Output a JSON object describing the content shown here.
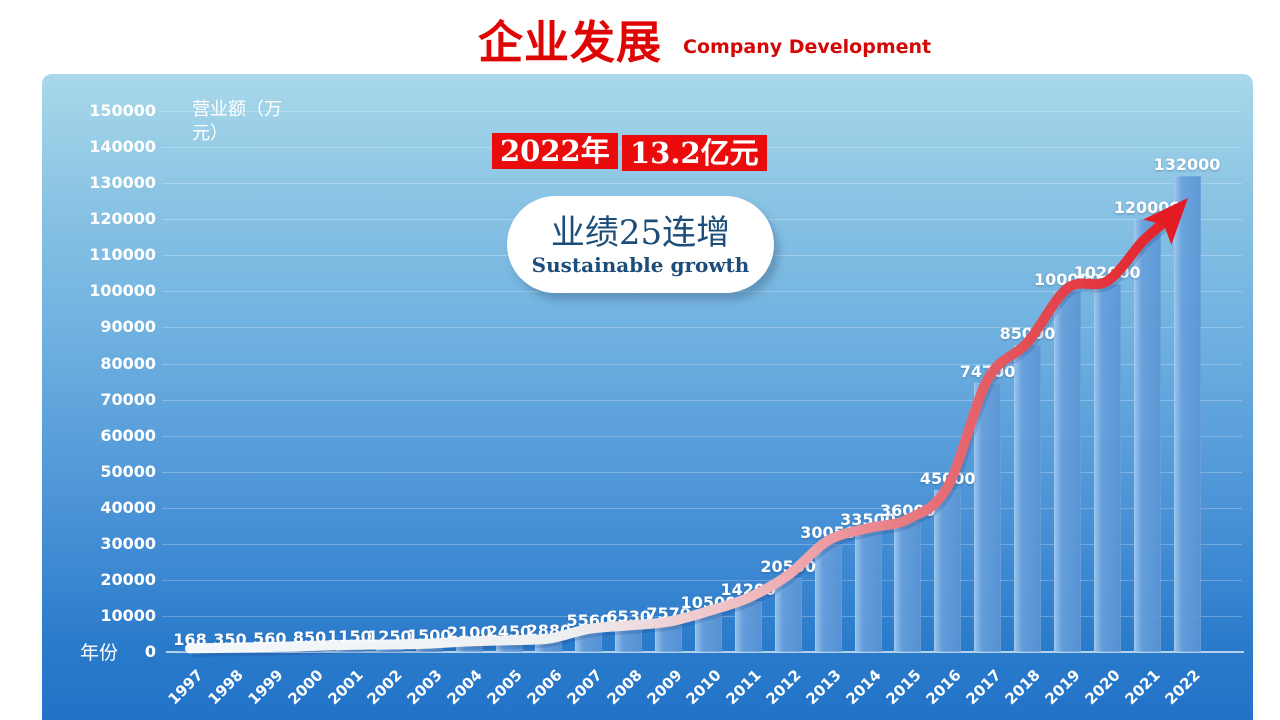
{
  "header": {
    "title_zh": "企业发展",
    "title_en": "Company Development"
  },
  "callout": {
    "year": "2022年",
    "amount": "13.2亿元"
  },
  "badge": {
    "line1": "业绩25连增",
    "line2": "Sustainable growth"
  },
  "chart_data": {
    "type": "bar",
    "title": "企业发展 Company Development",
    "xlabel": "年份",
    "ylabel": "营业额（万元）",
    "categories": [
      "1997",
      "1998",
      "1999",
      "2000",
      "2001",
      "2002",
      "2003",
      "2004",
      "2005",
      "2006",
      "2007",
      "2008",
      "2009",
      "2010",
      "2011",
      "2012",
      "2013",
      "2014",
      "2015",
      "2016",
      "2017",
      "2018",
      "2019",
      "2020",
      "2021",
      "2022"
    ],
    "values": [
      168,
      350,
      560,
      850,
      1150,
      1250,
      1500,
      2100,
      2450,
      2880,
      5560,
      6530,
      7570,
      10500,
      14200,
      20500,
      30050,
      33500,
      36000,
      45000,
      74700,
      85000,
      100000,
      102000,
      120000,
      132000
    ],
    "ylim": [
      0,
      150000
    ],
    "ytick_step": 10000,
    "grid": true,
    "legend": "none",
    "overlay": "trend-arrow-line",
    "colors": {
      "accent_red": "#ea0c0c",
      "title_red": "#e00505",
      "bar_blue": "#5f9bd8",
      "panel_top": "#a9d8ea",
      "panel_bottom": "#2272c8",
      "label_white": "#ffffff",
      "badge_text": "#1d4e79",
      "arrow_start": "#ffffff",
      "arrow_end": "#e31b22"
    }
  }
}
